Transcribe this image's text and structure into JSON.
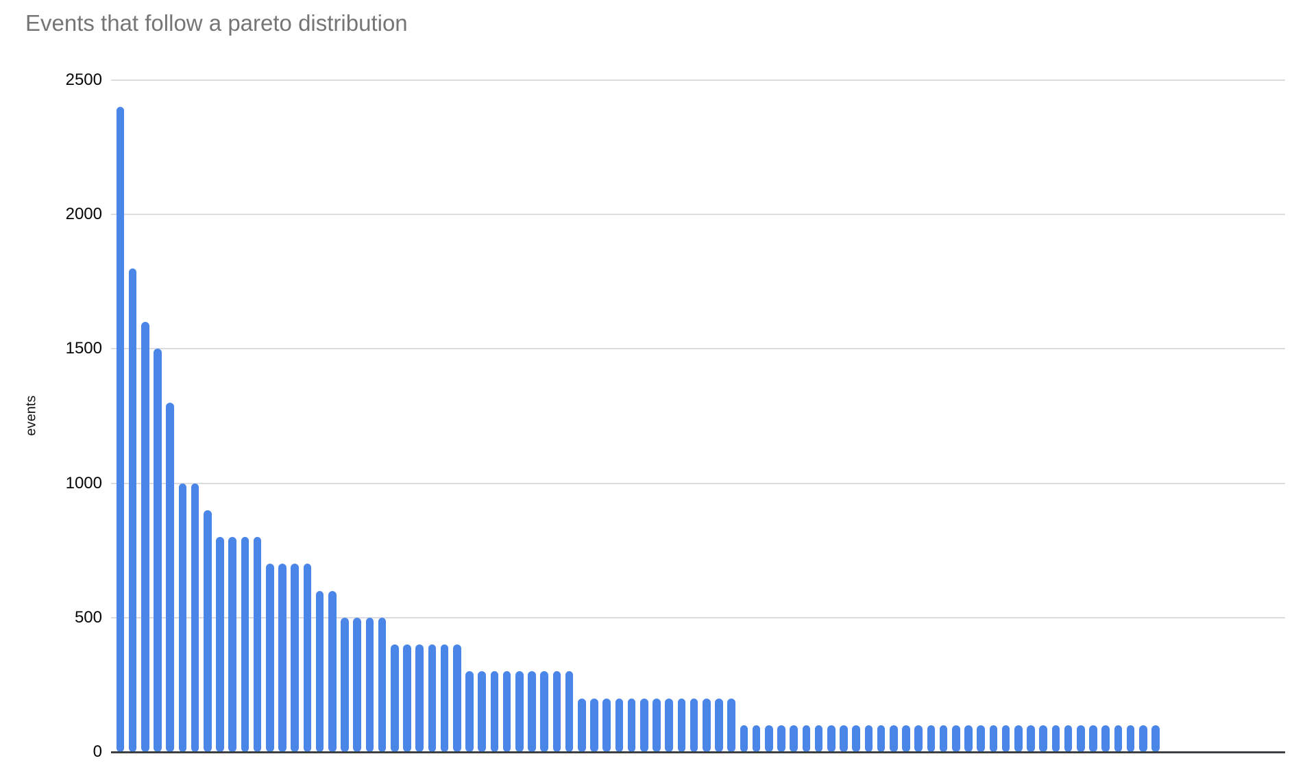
{
  "chart_data": {
    "type": "bar",
    "title": "Events that follow a pareto distribution",
    "ylabel": "events",
    "xlabel": "",
    "x_tick_labels": "none",
    "legend": "none",
    "grid": true,
    "ylim": [
      0,
      2500
    ],
    "y_ticks": [
      0,
      500,
      1000,
      1500,
      2000,
      2500
    ],
    "colors": {
      "bar": "#4a86e8",
      "title_text": "#757575",
      "gridline": "#dadce0",
      "axis_line": "#3c4043",
      "tick_label": "#050505",
      "background": "#ffffff"
    },
    "values": [
      2400,
      1800,
      1600,
      1500,
      1300,
      1000,
      1000,
      900,
      800,
      800,
      800,
      800,
      700,
      700,
      700,
      700,
      600,
      600,
      500,
      500,
      500,
      500,
      400,
      400,
      400,
      400,
      400,
      400,
      300,
      300,
      300,
      300,
      300,
      300,
      300,
      300,
      300,
      200,
      200,
      200,
      200,
      200,
      200,
      200,
      200,
      200,
      200,
      200,
      200,
      200,
      100,
      100,
      100,
      100,
      100,
      100,
      100,
      100,
      100,
      100,
      100,
      100,
      100,
      100,
      100,
      100,
      100,
      100,
      100,
      100,
      100,
      100,
      100,
      100,
      100,
      100,
      100,
      100,
      100,
      100,
      100,
      100,
      100,
      100
    ]
  }
}
